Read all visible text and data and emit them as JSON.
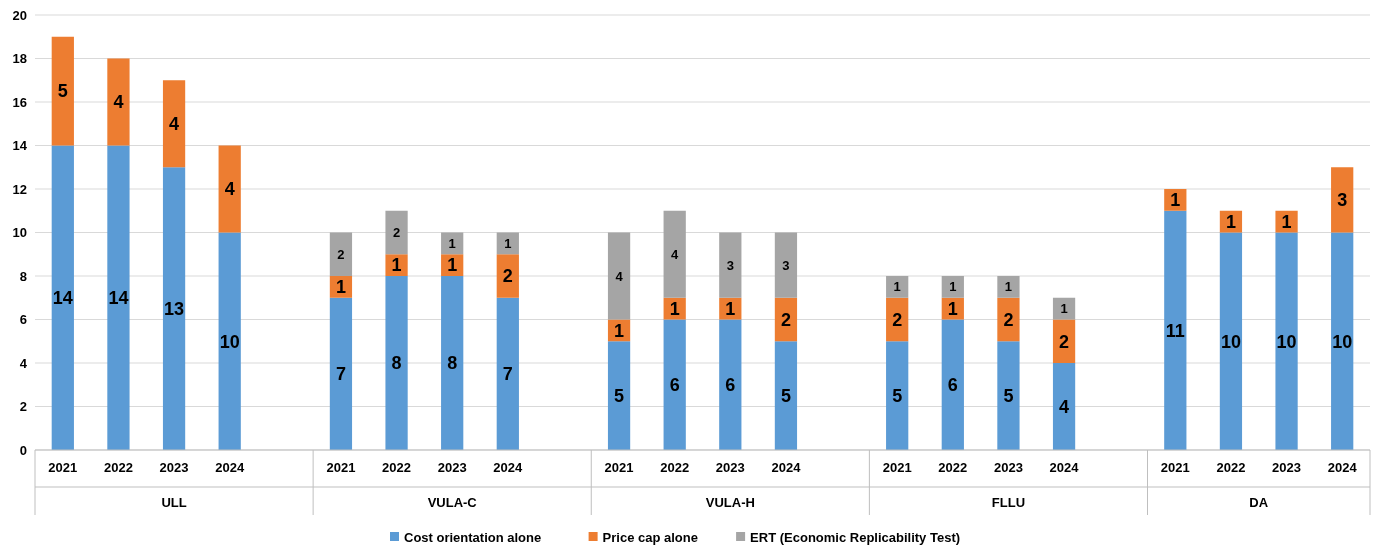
{
  "chart_data": {
    "type": "bar",
    "stacked": true,
    "categories": [
      "2021",
      "2022",
      "2023",
      "2024",
      null,
      "2021",
      "2022",
      "2023",
      "2024",
      null,
      "2021",
      "2022",
      "2023",
      "2024",
      null,
      "2021",
      "2022",
      "2023",
      "2024",
      null,
      "2021",
      "2022",
      "2023",
      "2024"
    ],
    "annotations": [
      "ULL",
      "VULA-C",
      "VULA-H",
      "FLLU",
      "DA"
    ],
    "series": [
      {
        "name": "Cost orientation alone",
        "color": "#5b9bd5",
        "values": [
          14,
          14,
          13,
          10,
          null,
          7,
          8,
          8,
          7,
          null,
          5,
          6,
          6,
          5,
          null,
          5,
          6,
          5,
          4,
          null,
          11,
          10,
          10,
          10
        ]
      },
      {
        "name": "Price cap alone",
        "color": "#ed7d31",
        "values": [
          5,
          4,
          4,
          4,
          null,
          1,
          1,
          1,
          2,
          null,
          1,
          1,
          1,
          2,
          null,
          2,
          1,
          2,
          2,
          null,
          1,
          1,
          1,
          3
        ]
      },
      {
        "name": "ERT (Economic Replicability Test)",
        "color": "#a5a5a5",
        "values": [
          null,
          null,
          null,
          null,
          null,
          2,
          2,
          1,
          1,
          null,
          4,
          4,
          3,
          3,
          null,
          1,
          1,
          1,
          1,
          null,
          null,
          null,
          null,
          null
        ]
      }
    ],
    "ylim": [
      0,
      20
    ],
    "yticks": [
      0,
      2,
      4,
      6,
      8,
      10,
      12,
      14,
      16,
      18,
      20
    ],
    "grid": "y",
    "data_labels": true,
    "legend": "bottom"
  }
}
